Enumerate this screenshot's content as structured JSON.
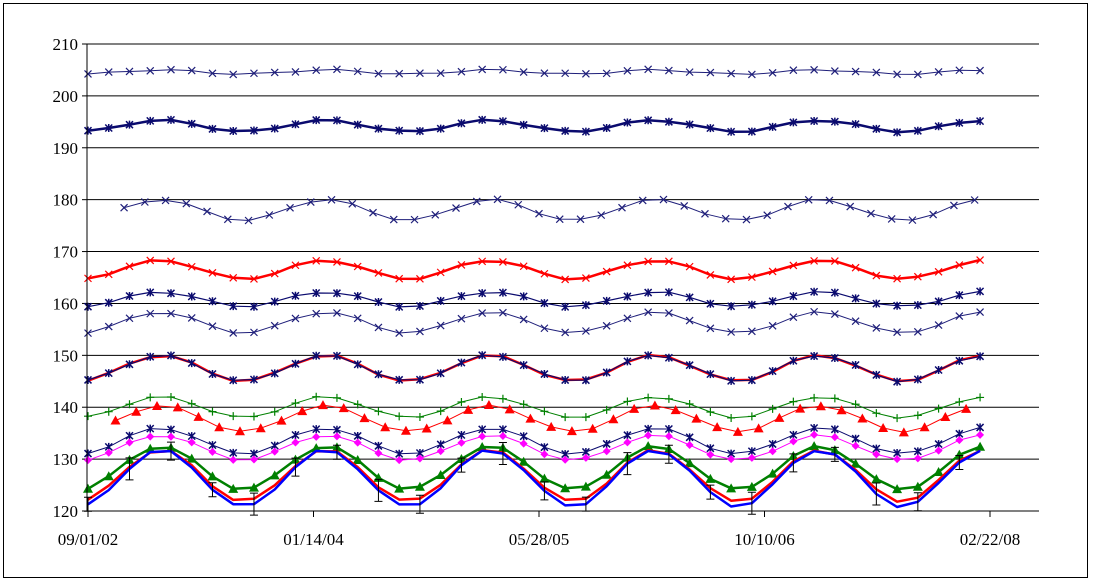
{
  "chart_data": {
    "type": "line",
    "title": "",
    "xlabel": "",
    "ylabel": "",
    "ylim": [
      120,
      210
    ],
    "yticks": [
      120,
      130,
      140,
      150,
      160,
      170,
      180,
      190,
      200,
      210
    ],
    "xlim": [
      "2002-09-01",
      "2008-02-22"
    ],
    "xticks": [
      "09/01/02",
      "01/14/04",
      "05/28/05",
      "10/10/06",
      "02/22/08"
    ],
    "grid": "horizontal",
    "legend": "none",
    "series": [
      {
        "color": "#1f1f7a",
        "marker": "x",
        "width": 1,
        "start": "2002-09-01",
        "base": 204.6,
        "amp": 0.4,
        "phase": 0.0,
        "n": 44
      },
      {
        "color": "#0a0a6e",
        "marker": "star",
        "width": 2.5,
        "start": "2002-09-01",
        "base": 194.2,
        "amp": 1.1,
        "phase": 0.0,
        "n": 44
      },
      {
        "color": "#1f1f7a",
        "marker": "x",
        "width": 1,
        "start": "2002-11-20",
        "base": 178.0,
        "amp": 2.0,
        "phase": 0.0,
        "n": 42
      },
      {
        "color": "#ff0000",
        "marker": "x",
        "width": 2.5,
        "start": "2002-09-01",
        "base": 166.5,
        "amp": 1.8,
        "phase": 0.0,
        "n": 44
      },
      {
        "color": "#0a0a6e",
        "marker": "star",
        "width": 1.2,
        "start": "2002-09-01",
        "base": 160.8,
        "amp": 1.4,
        "phase": 0.0,
        "n": 44
      },
      {
        "color": "#1f1f7a",
        "marker": "x",
        "width": 1,
        "start": "2002-09-01",
        "base": 156.3,
        "amp": 2.0,
        "phase": 0.0,
        "n": 44
      },
      {
        "color": "#ff0000",
        "marker": "none",
        "width": 2.5,
        "start": "2002-09-01",
        "base": 147.5,
        "amp": 2.5,
        "phase": 0.0,
        "n": 44
      },
      {
        "color": "#0a0a6e",
        "marker": "star",
        "width": 1.2,
        "start": "2002-09-01",
        "base": 147.5,
        "amp": 2.5,
        "phase": 0.0,
        "n": 44
      },
      {
        "color": "#008000",
        "marker": "plus",
        "width": 1,
        "start": "2002-09-01",
        "base": 140.0,
        "amp": 2.0,
        "phase": 0.0,
        "n": 44
      },
      {
        "color": "#ff0000",
        "marker": "triangle",
        "width": 1,
        "start": "2002-11-01",
        "base": 137.8,
        "amp": 2.5,
        "phase": 0.0,
        "n": 42
      },
      {
        "color": "#0a0a6e",
        "marker": "star",
        "width": 1,
        "start": "2002-09-01",
        "base": 133.5,
        "amp": 2.5,
        "phase": 0.0,
        "n": 44
      },
      {
        "color": "#ff00ff",
        "marker": "diamond",
        "width": 1,
        "start": "2002-09-01",
        "base": 132.2,
        "amp": 2.4,
        "phase": 0.0,
        "n": 44
      },
      {
        "color": "#008000",
        "marker": "triangle",
        "width": 2.5,
        "start": "2002-09-01",
        "base": 128.3,
        "amp": 4.2,
        "phase": 0.0,
        "n": 44
      },
      {
        "color": "#ff0000",
        "marker": "none",
        "width": 2.5,
        "start": "2002-09-01",
        "base": 126.8,
        "amp": 5.0,
        "phase": 0.0,
        "n": 44
      },
      {
        "color": "#0000ff",
        "marker": "none",
        "width": 2.5,
        "start": "2002-09-01",
        "base": 126.3,
        "amp": 5.5,
        "phase": 0.0,
        "n": 44,
        "errorbars": true
      }
    ]
  }
}
